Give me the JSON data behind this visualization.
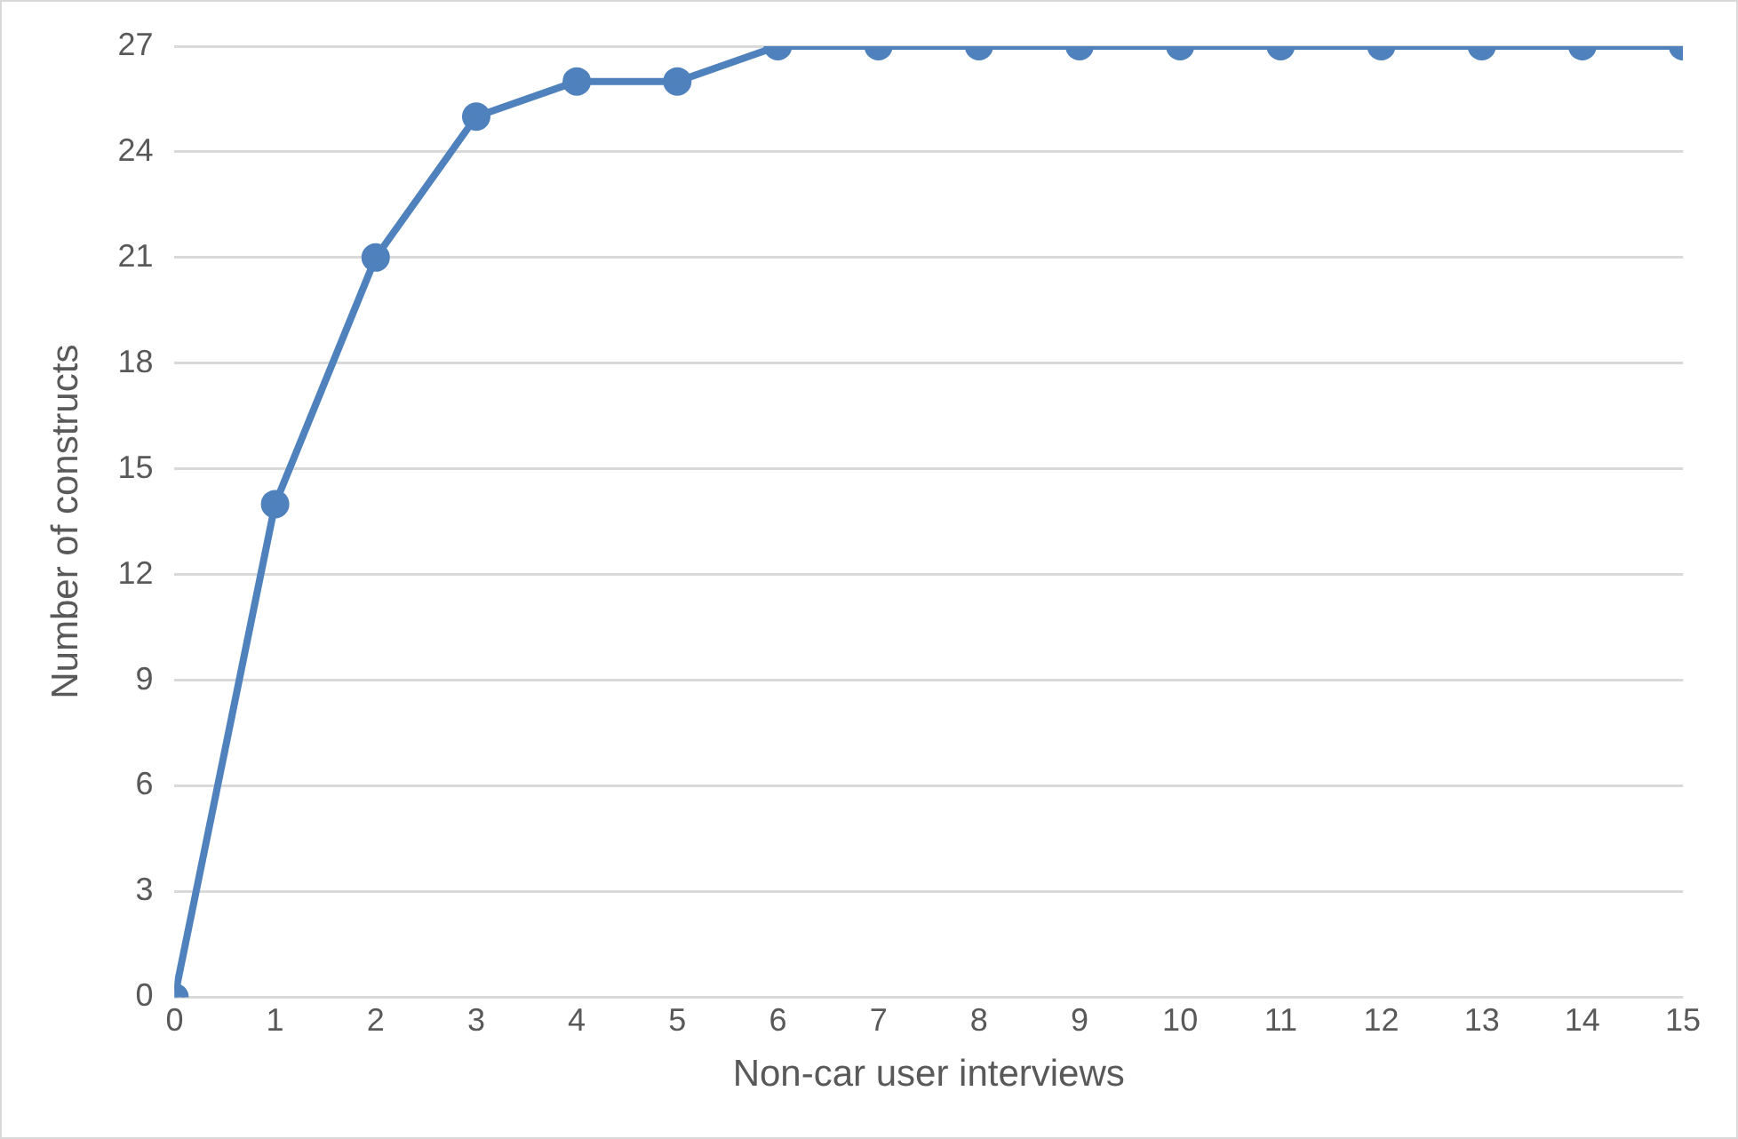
{
  "chart_data": {
    "type": "line",
    "xlabel": "Non-car user interviews",
    "ylabel": "Number of constructs",
    "x": [
      0,
      1,
      2,
      3,
      4,
      5,
      6,
      7,
      8,
      9,
      10,
      11,
      12,
      13,
      14,
      15
    ],
    "series": [
      {
        "color": "#4f81bd",
        "values": [
          0,
          14,
          21,
          25,
          26,
          26,
          27,
          27,
          27,
          27,
          27,
          27,
          27,
          27,
          27,
          27
        ]
      }
    ],
    "xlim": [
      0,
      15
    ],
    "xticks": [
      0,
      1,
      2,
      3,
      4,
      5,
      6,
      7,
      8,
      9,
      10,
      11,
      12,
      13,
      14,
      15
    ],
    "ylim": [
      0,
      27
    ],
    "yticks": [
      0,
      3,
      6,
      9,
      12,
      15,
      18,
      21,
      24,
      27
    ],
    "grid": "y",
    "legend": false,
    "marker": "circle",
    "line_style": "solid"
  }
}
